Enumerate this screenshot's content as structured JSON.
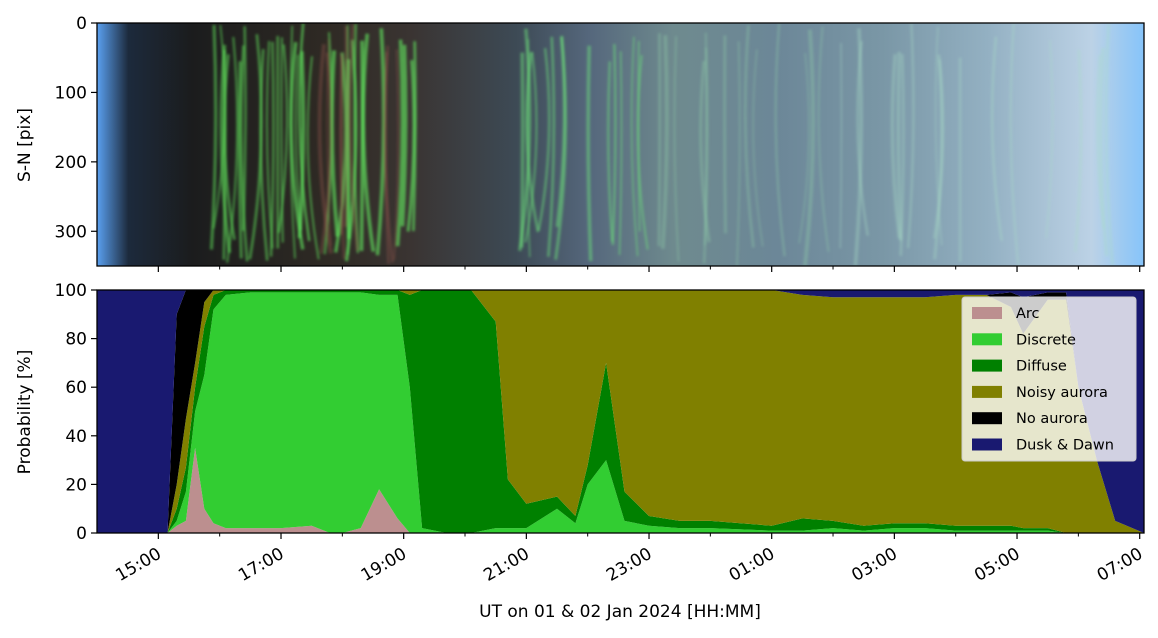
{
  "chart_data": [
    {
      "type": "heatmap",
      "description_role": "keogram",
      "ylabel": "S-N [pix]",
      "ylim": [
        350,
        0
      ],
      "yticks": [
        0,
        100,
        200,
        300
      ],
      "xlim_hours": [
        14.0,
        31.07
      ],
      "x_tick_labels_shown": false
    },
    {
      "type": "area",
      "xlabel": "UT on 01 & 02 Jan 2024 [HH:MM]",
      "ylabel": "Probability [%]",
      "ylim": [
        0,
        100
      ],
      "yticks": [
        0,
        20,
        40,
        60,
        80,
        100
      ],
      "xlim_hours": [
        14.0,
        31.07
      ],
      "x_major_ticks": [
        {
          "h": 15,
          "label": "15:00"
        },
        {
          "h": 17,
          "label": "17:00"
        },
        {
          "h": 19,
          "label": "19:00"
        },
        {
          "h": 21,
          "label": "21:00"
        },
        {
          "h": 23,
          "label": "23:00"
        },
        {
          "h": 25,
          "label": "01:00"
        },
        {
          "h": 27,
          "label": "03:00"
        },
        {
          "h": 29,
          "label": "05:00"
        },
        {
          "h": 31,
          "label": "07:00"
        }
      ],
      "x_minor_ticks": [
        16,
        18,
        20,
        22,
        24,
        26,
        28,
        30
      ],
      "legend_position": "upper-right",
      "series": [
        {
          "name": "Arc",
          "color": "#bc8f8f"
        },
        {
          "name": "Discrete",
          "color": "#32cd32"
        },
        {
          "name": "Diffuse",
          "color": "#008000"
        },
        {
          "name": "Noisy aurora",
          "color": "#808000"
        },
        {
          "name": "No aurora",
          "color": "#000000"
        },
        {
          "name": "Dusk & Dawn",
          "color": "#191970"
        }
      ],
      "x": [
        14.0,
        15.15,
        15.3,
        15.45,
        15.6,
        15.75,
        15.9,
        16.1,
        16.5,
        17.0,
        17.5,
        17.8,
        18.0,
        18.3,
        18.6,
        18.9,
        19.1,
        19.3,
        19.7,
        20.1,
        20.5,
        20.7,
        21.0,
        21.5,
        21.8,
        22.0,
        22.3,
        22.6,
        23.0,
        23.5,
        24.0,
        25.0,
        25.5,
        26.0,
        26.5,
        27.0,
        27.5,
        28.0,
        28.5,
        28.9,
        29.1,
        29.5,
        29.8,
        30.0,
        30.3,
        30.6,
        31.07
      ],
      "stack_values": {
        "Arc": [
          0,
          0,
          3,
          5,
          35,
          10,
          4,
          2,
          2,
          2,
          3,
          0,
          0,
          2,
          18,
          6,
          0,
          0,
          0,
          0,
          0,
          0,
          0,
          0,
          0,
          0,
          0,
          0,
          0,
          0,
          0,
          0,
          0,
          0,
          0,
          0,
          0,
          0,
          0,
          0,
          0,
          0,
          0,
          0,
          0,
          0,
          0
        ],
        "Discrete": [
          0,
          0,
          2,
          12,
          15,
          55,
          88,
          96,
          97,
          97,
          96,
          99,
          99,
          97,
          80,
          92,
          60,
          2,
          0,
          0,
          2,
          2,
          2,
          10,
          4,
          20,
          30,
          5,
          3,
          2,
          2,
          1,
          1,
          2,
          1,
          2,
          2,
          1,
          1,
          1,
          1,
          1,
          0,
          0,
          0,
          0,
          0
        ],
        "Diffuse": [
          0,
          0,
          5,
          10,
          10,
          20,
          6,
          2,
          1,
          1,
          1,
          1,
          1,
          1,
          2,
          2,
          38,
          98,
          100,
          100,
          85,
          20,
          10,
          5,
          3,
          8,
          40,
          12,
          4,
          3,
          3,
          2,
          5,
          3,
          2,
          2,
          2,
          2,
          2,
          2,
          1,
          1,
          0,
          0,
          0,
          0,
          0
        ],
        "Noisy aurora": [
          0,
          0,
          10,
          20,
          10,
          10,
          2,
          0,
          0,
          0,
          0,
          0,
          0,
          0,
          0,
          0,
          2,
          0,
          0,
          0,
          13,
          78,
          88,
          85,
          93,
          72,
          30,
          83,
          93,
          95,
          95,
          97,
          92,
          92,
          94,
          93,
          93,
          95,
          95,
          90,
          80,
          94,
          96,
          60,
          30,
          5,
          0
        ],
        "No aurora": [
          0,
          0,
          70,
          53,
          30,
          5,
          0,
          0,
          0,
          0,
          0,
          0,
          0,
          0,
          0,
          0,
          0,
          0,
          0,
          0,
          0,
          0,
          0,
          0,
          0,
          0,
          0,
          0,
          0,
          0,
          0,
          0,
          0,
          0,
          0,
          0,
          0,
          0,
          0,
          6,
          15,
          3,
          3,
          0,
          0,
          0,
          0
        ],
        "Dusk & Dawn": [
          100,
          100,
          10,
          0,
          0,
          0,
          0,
          0,
          0,
          0,
          0,
          0,
          0,
          0,
          0,
          0,
          0,
          0,
          0,
          0,
          0,
          0,
          0,
          0,
          0,
          0,
          0,
          0,
          0,
          0,
          0,
          0,
          2,
          3,
          3,
          3,
          3,
          2,
          2,
          1,
          3,
          1,
          1,
          40,
          70,
          95,
          100
        ]
      }
    }
  ]
}
